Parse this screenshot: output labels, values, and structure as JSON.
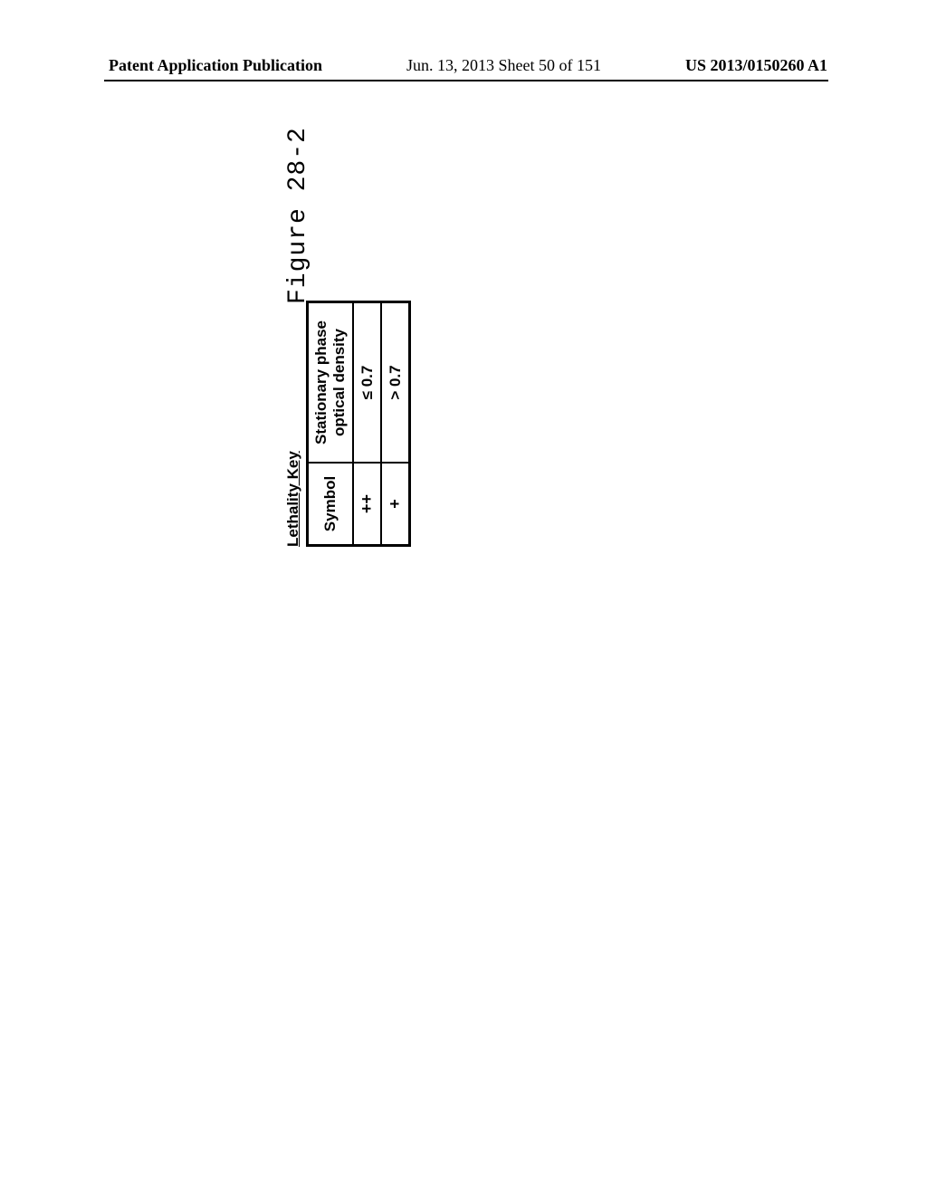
{
  "header": {
    "left": "Patent Application Publication",
    "center": "Jun. 13, 2013  Sheet 50 of 151",
    "right": "US 2013/0150260 A1"
  },
  "figure": {
    "label": "Figure 28-2"
  },
  "lethality_table": {
    "title": "Lethality Key",
    "columns": {
      "symbol": "Symbol",
      "density": "Stationary phase optical density"
    },
    "rows": [
      {
        "symbol": "++",
        "density": "≤ 0.7"
      },
      {
        "symbol": "+",
        "density": "> 0.7"
      }
    ]
  }
}
